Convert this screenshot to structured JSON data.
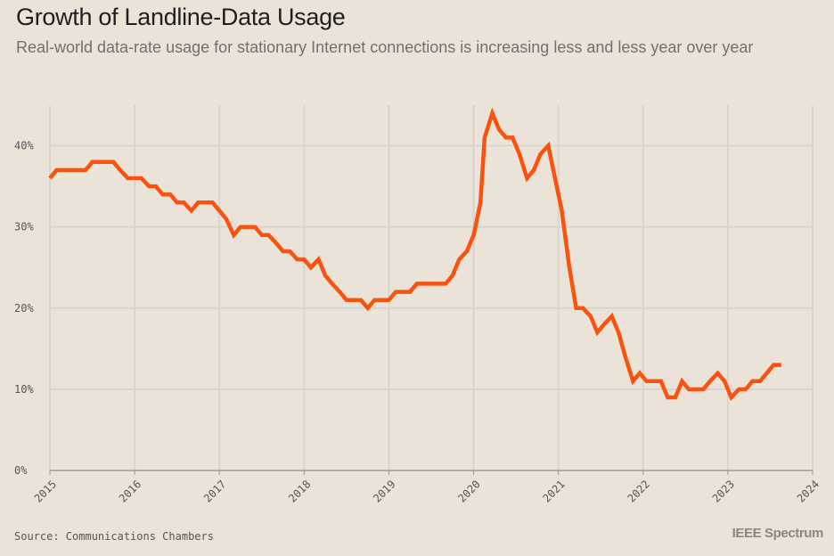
{
  "title": "Growth of Landline-Data Usage",
  "subtitle": "Real-world data-rate usage for stationary Internet connections is increasing less and less year over year",
  "source": "Source: Communications Chambers",
  "brand": "IEEE Spectrum",
  "colors": {
    "background": "#ebe3d8",
    "line": "#fa520f",
    "grid": "#d8d4ce",
    "axis": "#9a9a9a"
  },
  "chart_data": {
    "type": "line",
    "title": "Growth of Landline-Data Usage",
    "xlabel": "",
    "ylabel": "",
    "xlim": [
      2015,
      2024
    ],
    "ylim": [
      0,
      0.45
    ],
    "grid": true,
    "y_ticks": [
      "0%",
      "10%",
      "20%",
      "30%",
      "40%"
    ],
    "x_ticks": [
      "2015",
      "2016",
      "2017",
      "2018",
      "2019",
      "2020",
      "2021",
      "2022",
      "2023",
      "2024"
    ],
    "series": [
      {
        "color": "#fa520f",
        "points": [
          [
            2015.0,
            0.36
          ],
          [
            2015.08,
            0.37
          ],
          [
            2015.17,
            0.37
          ],
          [
            2015.25,
            0.37
          ],
          [
            2015.33,
            0.37
          ],
          [
            2015.42,
            0.37
          ],
          [
            2015.5,
            0.38
          ],
          [
            2015.58,
            0.38
          ],
          [
            2015.67,
            0.38
          ],
          [
            2015.75,
            0.38
          ],
          [
            2015.83,
            0.37
          ],
          [
            2015.92,
            0.36
          ],
          [
            2016.0,
            0.36
          ],
          [
            2016.08,
            0.36
          ],
          [
            2016.17,
            0.35
          ],
          [
            2016.25,
            0.35
          ],
          [
            2016.33,
            0.34
          ],
          [
            2016.42,
            0.34
          ],
          [
            2016.5,
            0.33
          ],
          [
            2016.58,
            0.33
          ],
          [
            2016.67,
            0.32
          ],
          [
            2016.75,
            0.33
          ],
          [
            2016.83,
            0.33
          ],
          [
            2016.92,
            0.33
          ],
          [
            2017.0,
            0.32
          ],
          [
            2017.08,
            0.31
          ],
          [
            2017.17,
            0.29
          ],
          [
            2017.25,
            0.3
          ],
          [
            2017.33,
            0.3
          ],
          [
            2017.42,
            0.3
          ],
          [
            2017.5,
            0.29
          ],
          [
            2017.58,
            0.29
          ],
          [
            2017.67,
            0.28
          ],
          [
            2017.75,
            0.27
          ],
          [
            2017.83,
            0.27
          ],
          [
            2017.92,
            0.26
          ],
          [
            2018.0,
            0.26
          ],
          [
            2018.08,
            0.25
          ],
          [
            2018.17,
            0.26
          ],
          [
            2018.25,
            0.24
          ],
          [
            2018.33,
            0.23
          ],
          [
            2018.42,
            0.22
          ],
          [
            2018.5,
            0.21
          ],
          [
            2018.58,
            0.21
          ],
          [
            2018.67,
            0.21
          ],
          [
            2018.75,
            0.2
          ],
          [
            2018.83,
            0.21
          ],
          [
            2018.92,
            0.21
          ],
          [
            2019.0,
            0.21
          ],
          [
            2019.08,
            0.22
          ],
          [
            2019.17,
            0.22
          ],
          [
            2019.25,
            0.22
          ],
          [
            2019.33,
            0.23
          ],
          [
            2019.42,
            0.23
          ],
          [
            2019.5,
            0.23
          ],
          [
            2019.58,
            0.23
          ],
          [
            2019.67,
            0.23
          ],
          [
            2019.75,
            0.24
          ],
          [
            2019.83,
            0.26
          ],
          [
            2019.92,
            0.27
          ],
          [
            2020.0,
            0.29
          ],
          [
            2020.08,
            0.33
          ],
          [
            2020.13,
            0.41
          ],
          [
            2020.22,
            0.44
          ],
          [
            2020.3,
            0.42
          ],
          [
            2020.38,
            0.41
          ],
          [
            2020.46,
            0.41
          ],
          [
            2020.54,
            0.39
          ],
          [
            2020.63,
            0.36
          ],
          [
            2020.71,
            0.37
          ],
          [
            2020.79,
            0.39
          ],
          [
            2020.88,
            0.4
          ],
          [
            2020.96,
            0.36
          ],
          [
            2021.04,
            0.32
          ],
          [
            2021.13,
            0.25
          ],
          [
            2021.21,
            0.2
          ],
          [
            2021.29,
            0.2
          ],
          [
            2021.38,
            0.19
          ],
          [
            2021.46,
            0.17
          ],
          [
            2021.54,
            0.18
          ],
          [
            2021.63,
            0.19
          ],
          [
            2021.71,
            0.17
          ],
          [
            2021.79,
            0.14
          ],
          [
            2021.88,
            0.11
          ],
          [
            2021.96,
            0.12
          ],
          [
            2022.04,
            0.11
          ],
          [
            2022.13,
            0.11
          ],
          [
            2022.21,
            0.11
          ],
          [
            2022.29,
            0.09
          ],
          [
            2022.38,
            0.09
          ],
          [
            2022.46,
            0.11
          ],
          [
            2022.54,
            0.1
          ],
          [
            2022.63,
            0.1
          ],
          [
            2022.71,
            0.1
          ],
          [
            2022.79,
            0.11
          ],
          [
            2022.88,
            0.12
          ],
          [
            2022.96,
            0.11
          ],
          [
            2023.04,
            0.09
          ],
          [
            2023.13,
            0.1
          ],
          [
            2023.21,
            0.1
          ],
          [
            2023.29,
            0.11
          ],
          [
            2023.38,
            0.11
          ],
          [
            2023.46,
            0.12
          ],
          [
            2023.54,
            0.13
          ],
          [
            2023.63,
            0.13
          ]
        ]
      }
    ]
  }
}
